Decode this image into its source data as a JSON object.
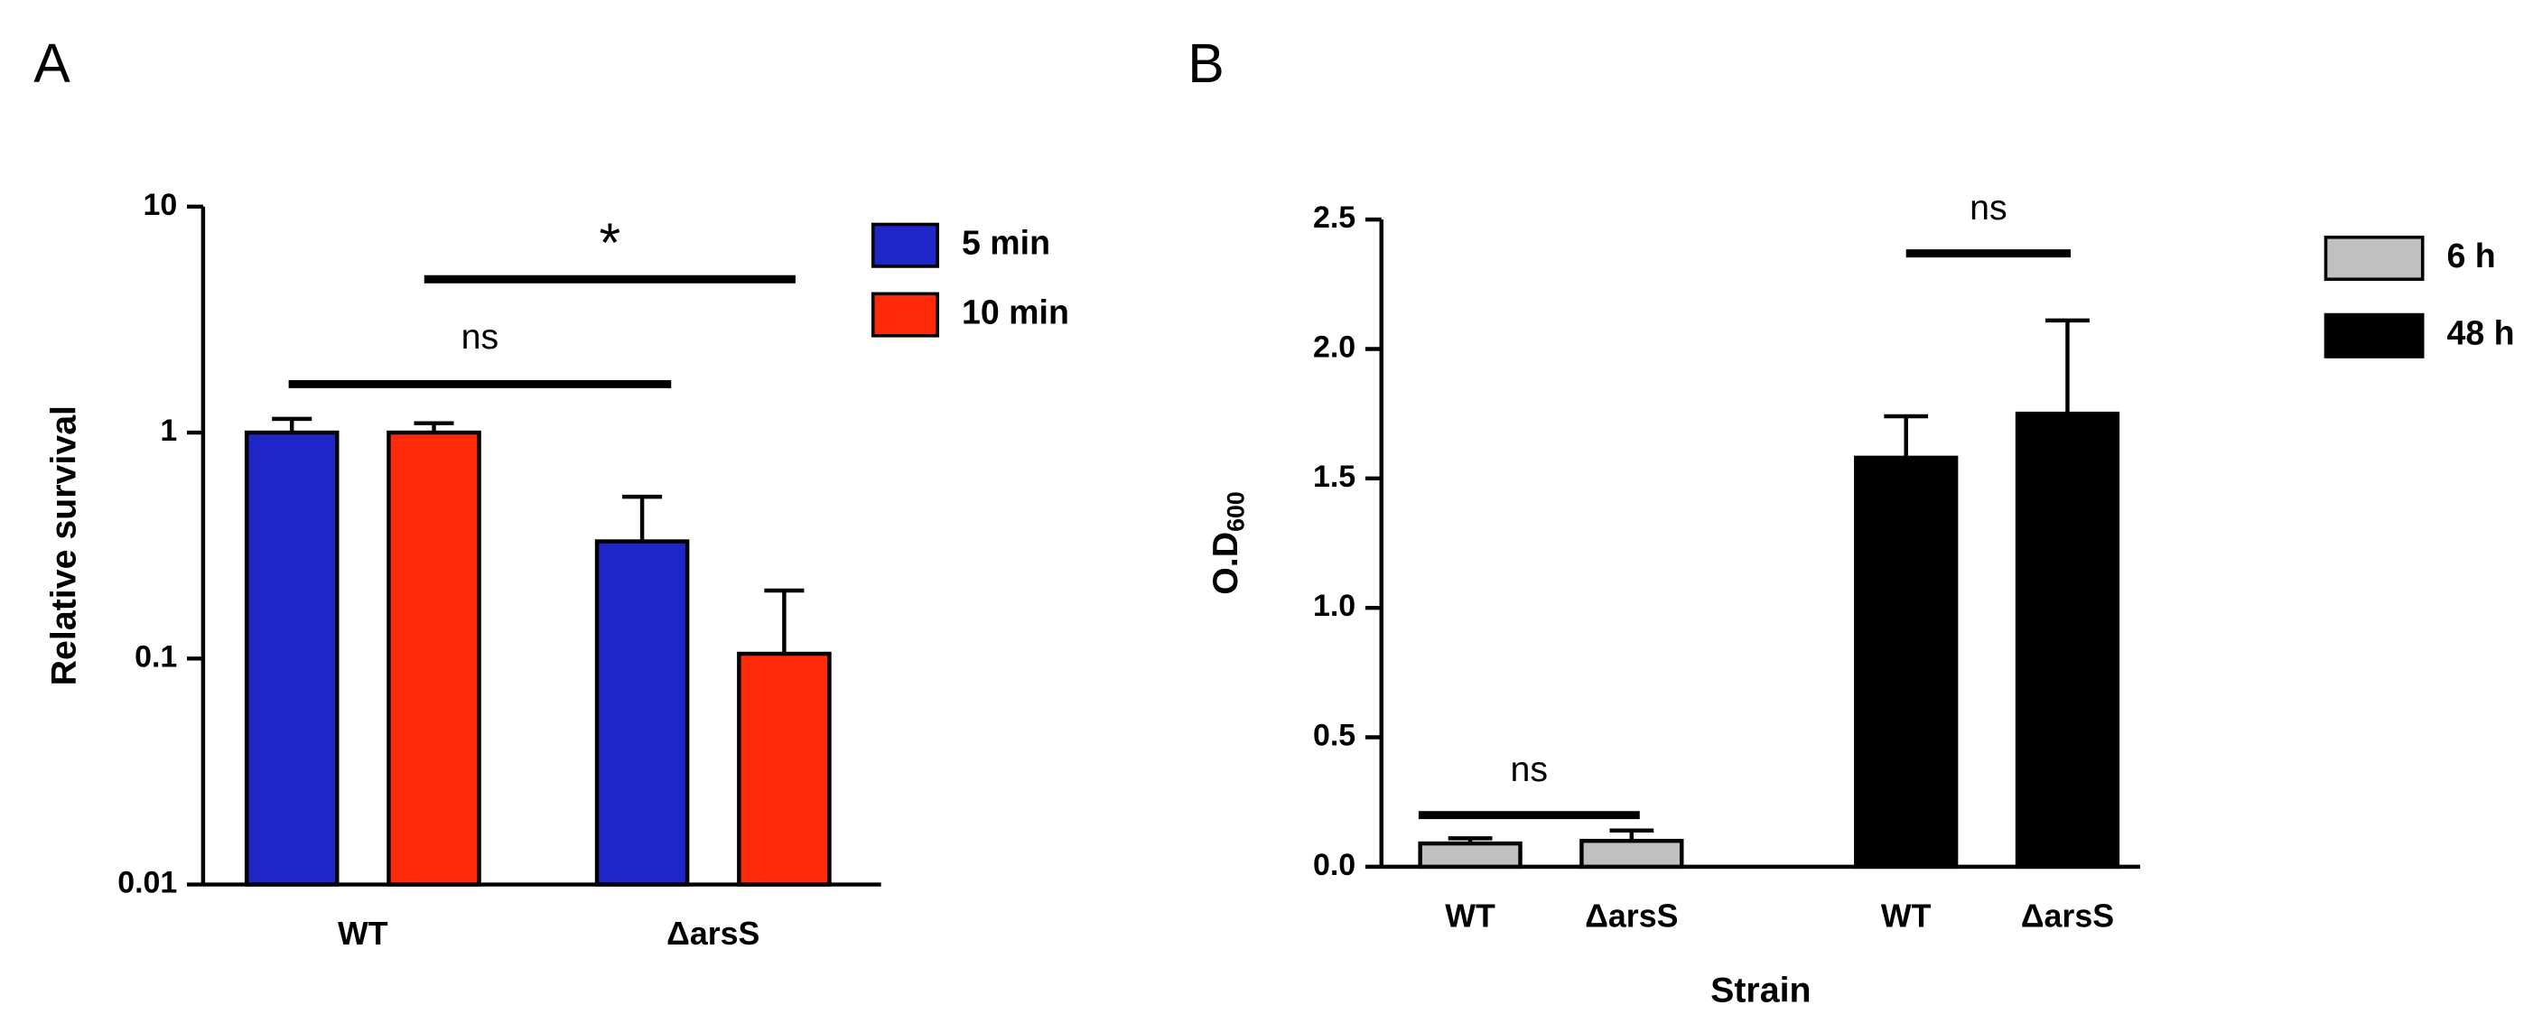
{
  "panels": [
    "A",
    "B"
  ],
  "chart_data": [
    {
      "type": "bar",
      "log_scale": true,
      "ylabel": "Relative survival",
      "categories": [
        "WT",
        "ΔarsS"
      ],
      "series": [
        {
          "name": "5 min",
          "color": "#1f26c7",
          "values": [
            1.0,
            0.33
          ],
          "errors": [
            0.15,
            0.19
          ]
        },
        {
          "name": "10 min",
          "color": "#ff2a0a",
          "values": [
            1.0,
            0.105
          ],
          "errors": [
            0.1,
            0.095
          ]
        }
      ],
      "ylim": [
        0.01,
        10
      ],
      "yticks": [
        0.01,
        0.1,
        1,
        10
      ],
      "annotations": [
        "ns",
        "*"
      ],
      "legend": "right"
    },
    {
      "type": "bar",
      "log_scale": false,
      "ylabel": {
        "text": "O.D",
        "subscript": "600"
      },
      "xlabel": "Strain",
      "categories": [
        "WT",
        "ΔarsS",
        "WT",
        "ΔarsS"
      ],
      "series": [
        {
          "name": "6 h",
          "color": "#c0c0c0",
          "values": [
            0.09,
            0.1,
            null,
            null
          ],
          "errors": [
            0.02,
            0.04,
            null,
            null
          ]
        },
        {
          "name": "48 h",
          "color": "#000000",
          "values": [
            null,
            null,
            1.58,
            1.75
          ],
          "errors": [
            null,
            null,
            0.16,
            0.36
          ]
        }
      ],
      "ylim": [
        0,
        2.5
      ],
      "yticks": [
        {
          "value": 0,
          "label": "0.0"
        },
        0.5,
        {
          "value": 1,
          "label": "1.0"
        },
        1.5,
        {
          "value": 2,
          "label": "2.0"
        },
        2.5
      ],
      "annotations": [
        "ns",
        "ns"
      ],
      "legend": "right"
    }
  ]
}
